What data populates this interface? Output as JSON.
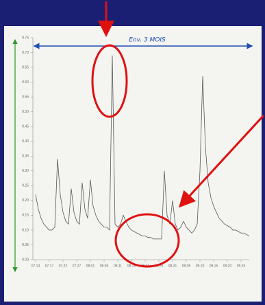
{
  "chart_data": {
    "type": "line",
    "annotation": "Env. 3 MOIS",
    "x": [
      0,
      1,
      2,
      3,
      4,
      5,
      6,
      7,
      8,
      9,
      10,
      11,
      12,
      13,
      14,
      15,
      16,
      17,
      18,
      19,
      20,
      21,
      22,
      23,
      24,
      25,
      26,
      27,
      28,
      29,
      30,
      31,
      32,
      33,
      34,
      35,
      36,
      37,
      38,
      39,
      40,
      41,
      42,
      43,
      44,
      45,
      46,
      47,
      48,
      49,
      50,
      51,
      52,
      53,
      54,
      55,
      56,
      57,
      58,
      59,
      60,
      61,
      62,
      63,
      64,
      65,
      66,
      67,
      68,
      69,
      70,
      71,
      72,
      73,
      74,
      75,
      76,
      77,
      78
    ],
    "series": [
      {
        "color": "#555555",
        "values": [
          0.22,
          0.17,
          0.14,
          0.12,
          0.11,
          0.1,
          0.1,
          0.11,
          0.34,
          0.22,
          0.16,
          0.13,
          0.12,
          0.24,
          0.16,
          0.13,
          0.12,
          0.26,
          0.17,
          0.14,
          0.27,
          0.18,
          0.15,
          0.13,
          0.12,
          0.11,
          0.11,
          0.1,
          0.69,
          0.12,
          0.11,
          0.12,
          0.15,
          0.13,
          0.11,
          0.1,
          0.095,
          0.09,
          0.085,
          0.08,
          0.08,
          0.075,
          0.075,
          0.07,
          0.07,
          0.07,
          0.07,
          0.3,
          0.15,
          0.12,
          0.2,
          0.12,
          0.1,
          0.11,
          0.13,
          0.11,
          0.1,
          0.09,
          0.1,
          0.12,
          0.3,
          0.62,
          0.38,
          0.26,
          0.21,
          0.18,
          0.16,
          0.14,
          0.13,
          0.12,
          0.115,
          0.11,
          0.1,
          0.1,
          0.095,
          0.09,
          0.09,
          0.085,
          0.08
        ]
      }
    ],
    "xlim": [
      -1,
      78
    ],
    "xticks": [
      {
        "value": 0,
        "label": "07.13"
      },
      {
        "value": 5,
        "label": "07.17"
      },
      {
        "value": 10,
        "label": "07.22"
      },
      {
        "value": 15,
        "label": "07.27"
      },
      {
        "value": 20,
        "label": "08.01"
      },
      {
        "value": 25,
        "label": "08.06"
      },
      {
        "value": 30,
        "label": "08.11"
      },
      {
        "value": 35,
        "label": "08.16"
      },
      {
        "value": 40,
        "label": "08.21"
      },
      {
        "value": 45,
        "label": "08.26"
      },
      {
        "value": 50,
        "label": "08.31"
      },
      {
        "value": 55,
        "label": "09.05"
      },
      {
        "value": 60,
        "label": "09.10"
      },
      {
        "value": 65,
        "label": "09.15"
      },
      {
        "value": 70,
        "label": "09.20"
      },
      {
        "value": 75,
        "label": "09.25"
      }
    ],
    "ylim": [
      0,
      0.75
    ],
    "yticks": [
      {
        "value": 0,
        "label": "0.00"
      },
      {
        "value": 0.05,
        "label": "0.05"
      },
      {
        "value": 0.1,
        "label": "0.10"
      },
      {
        "value": 0.15,
        "label": "0.15"
      },
      {
        "value": 0.2,
        "label": "0.20"
      },
      {
        "value": 0.25,
        "label": "0.25"
      },
      {
        "value": 0.3,
        "label": "0.30"
      },
      {
        "value": 0.35,
        "label": "0.35"
      },
      {
        "value": 0.4,
        "label": "0.40"
      },
      {
        "value": 0.45,
        "label": "0.45"
      },
      {
        "value": 0.5,
        "label": "0.50"
      },
      {
        "value": 0.55,
        "label": "0.55"
      },
      {
        "value": 0.6,
        "label": "0.60"
      },
      {
        "value": 0.65,
        "label": "0.65"
      },
      {
        "value": 0.7,
        "label": "0.70"
      },
      {
        "value": 0.75,
        "label": "0.75"
      }
    ],
    "grid": false
  }
}
